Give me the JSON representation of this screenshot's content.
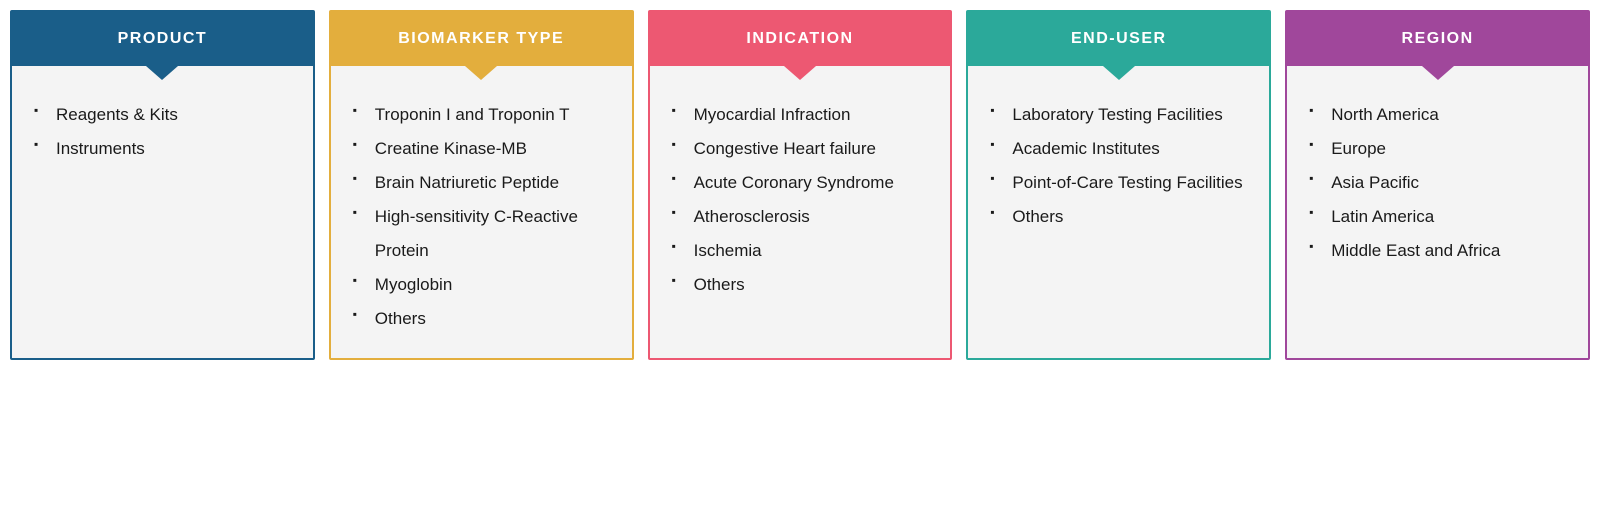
{
  "columns": [
    {
      "title": "PRODUCT",
      "color": "#1a5e89",
      "items": [
        "Reagents & Kits",
        "Instruments"
      ]
    },
    {
      "title": "BIOMARKER TYPE",
      "color": "#e3ae3d",
      "items": [
        "Troponin I and Troponin T",
        "Creatine Kinase-MB",
        "Brain Natriuretic Peptide",
        "High-sensitivity C-Reactive Protein",
        "Myoglobin",
        "Others"
      ]
    },
    {
      "title": "INDICATION",
      "color": "#ed5872",
      "items": [
        "Myocardial Infraction",
        "Congestive Heart failure",
        "Acute Coronary Syndrome",
        "Atherosclerosis",
        "Ischemia",
        "Others"
      ]
    },
    {
      "title": "END-USER",
      "color": "#2ba99a",
      "items": [
        "Laboratory Testing Facilities",
        "Academic Institutes",
        "Point-of-Care Testing Facilities",
        "Others"
      ]
    },
    {
      "title": "REGION",
      "color": "#a0479b",
      "items": [
        "North America",
        "Europe",
        "Asia Pacific",
        "Latin America",
        "Middle East and Africa"
      ]
    }
  ],
  "body_background": "#f4f4f4",
  "text_color": "#1a1a1a"
}
